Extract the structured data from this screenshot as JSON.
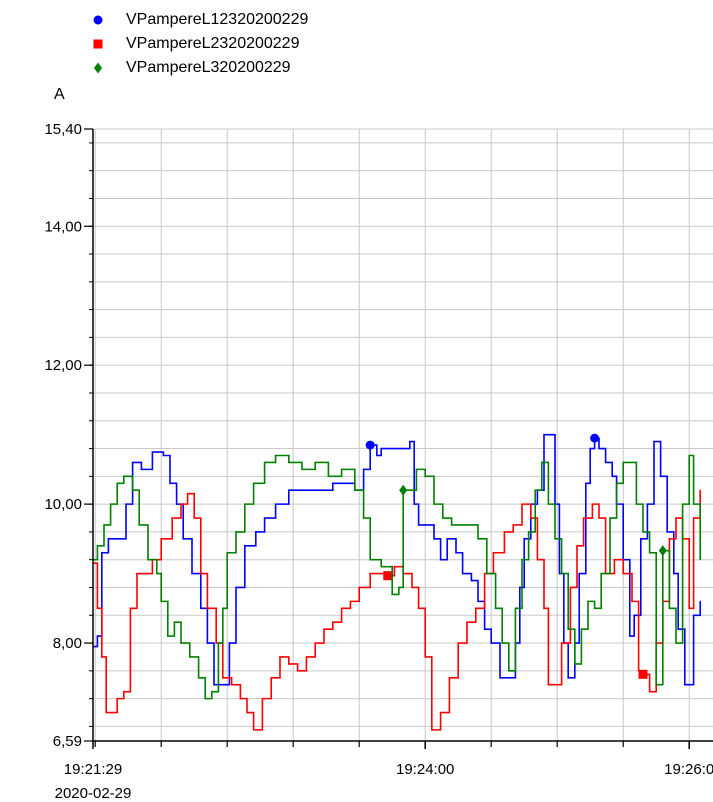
{
  "chart_data": {
    "type": "line",
    "ylabel": "A",
    "ylim": [
      6.59,
      15.4
    ],
    "yticks": [
      "15,40",
      "14,00",
      "12,00",
      "10,00",
      "8,00",
      "6,59"
    ],
    "ytick_values": [
      15.4,
      14.0,
      12.0,
      10.0,
      8.0,
      6.59
    ],
    "xlim": [
      "19:21:29",
      "19:26:05"
    ],
    "xticks": [
      {
        "time": "19:21:29",
        "label": "19:21:29",
        "sublabel": "2020-02-29"
      },
      {
        "time": "19:24:00",
        "label": "19:24:00",
        "sublabel": ""
      },
      {
        "time": "19:26:00",
        "label": "19:26:0",
        "sublabel": ""
      }
    ],
    "grid": true,
    "legend_position": "top-left",
    "series": [
      {
        "name": "VPampereL12320200229",
        "color": "#0000ff",
        "marker": "circle",
        "marker_at": [
          "19:23:35",
          "19:25:17"
        ],
        "points": [
          [
            "19:21:29",
            7.95
          ],
          [
            "19:21:31",
            8.1
          ],
          [
            "19:21:33",
            9.3
          ],
          [
            "19:21:36",
            9.5
          ],
          [
            "19:21:42",
            9.5
          ],
          [
            "19:21:44",
            10.0
          ],
          [
            "19:21:47",
            10.6
          ],
          [
            "19:21:51",
            10.5
          ],
          [
            "19:21:56",
            10.75
          ],
          [
            "19:22:01",
            10.7
          ],
          [
            "19:22:04",
            10.3
          ],
          [
            "19:22:07",
            10.0
          ],
          [
            "19:22:10",
            9.5
          ],
          [
            "19:22:14",
            9.0
          ],
          [
            "19:22:18",
            8.5
          ],
          [
            "19:22:21",
            8.0
          ],
          [
            "19:22:24",
            7.4
          ],
          [
            "19:22:29",
            7.4
          ],
          [
            "19:22:31",
            8.0
          ],
          [
            "19:22:34",
            8.8
          ],
          [
            "19:22:38",
            9.4
          ],
          [
            "19:22:43",
            9.6
          ],
          [
            "19:22:47",
            9.8
          ],
          [
            "19:22:52",
            10.0
          ],
          [
            "19:22:58",
            10.2
          ],
          [
            "19:23:10",
            10.2
          ],
          [
            "19:23:18",
            10.3
          ],
          [
            "19:23:24",
            10.3
          ],
          [
            "19:23:28",
            10.2
          ],
          [
            "19:23:32",
            10.5
          ],
          [
            "19:23:35",
            10.85
          ],
          [
            "19:23:38",
            10.7
          ],
          [
            "19:23:40",
            10.8
          ],
          [
            "19:23:46",
            10.8
          ],
          [
            "19:23:53",
            10.9
          ],
          [
            "19:23:55",
            10.0
          ],
          [
            "19:23:57",
            9.7
          ],
          [
            "19:24:00",
            9.7
          ],
          [
            "19:24:04",
            9.5
          ],
          [
            "19:24:07",
            9.2
          ],
          [
            "19:24:10",
            9.5
          ],
          [
            "19:24:14",
            9.3
          ],
          [
            "19:24:17",
            9.0
          ],
          [
            "19:24:21",
            8.9
          ],
          [
            "19:24:24",
            8.6
          ],
          [
            "19:24:27",
            8.2
          ],
          [
            "19:24:30",
            8.0
          ],
          [
            "19:24:34",
            7.5
          ],
          [
            "19:24:38",
            7.5
          ],
          [
            "19:24:41",
            8.0
          ],
          [
            "19:24:43",
            8.8
          ],
          [
            "19:24:45",
            9.5
          ],
          [
            "19:24:48",
            10.0
          ],
          [
            "19:24:51",
            10.2
          ],
          [
            "19:24:54",
            11.0
          ],
          [
            "19:24:57",
            11.0
          ],
          [
            "19:24:59",
            10.0
          ],
          [
            "19:25:01",
            9.0
          ],
          [
            "19:25:03",
            8.0
          ],
          [
            "19:25:05",
            7.5
          ],
          [
            "19:25:08",
            8.0
          ],
          [
            "19:25:10",
            9.0
          ],
          [
            "19:25:13",
            10.3
          ],
          [
            "19:25:15",
            10.8
          ],
          [
            "19:25:17",
            10.95
          ],
          [
            "19:25:19",
            10.8
          ],
          [
            "19:25:22",
            10.6
          ],
          [
            "19:25:25",
            10.4
          ],
          [
            "19:25:27",
            10.0
          ],
          [
            "19:25:30",
            9.2
          ],
          [
            "19:25:33",
            8.1
          ],
          [
            "19:25:35",
            8.4
          ],
          [
            "19:25:38",
            9.5
          ],
          [
            "19:25:41",
            10.0
          ],
          [
            "19:25:44",
            10.9
          ],
          [
            "19:25:47",
            10.4
          ],
          [
            "19:25:50",
            9.6
          ],
          [
            "19:25:53",
            9.0
          ],
          [
            "19:25:55",
            8.2
          ],
          [
            "19:25:58",
            7.4
          ],
          [
            "19:26:00",
            7.4
          ],
          [
            "19:26:02",
            8.4
          ],
          [
            "19:26:05",
            8.6
          ]
        ]
      },
      {
        "name": "VPampereL2320200229",
        "color": "#ff0000",
        "marker": "square",
        "marker_at": [
          "19:23:43",
          "19:25:39"
        ],
        "points": [
          [
            "19:21:29",
            9.15
          ],
          [
            "19:21:31",
            8.5
          ],
          [
            "19:21:33",
            7.8
          ],
          [
            "19:21:35",
            7.0
          ],
          [
            "19:21:38",
            7.0
          ],
          [
            "19:21:40",
            7.2
          ],
          [
            "19:21:43",
            7.3
          ],
          [
            "19:21:46",
            8.5
          ],
          [
            "19:21:49",
            9.0
          ],
          [
            "19:21:53",
            9.0
          ],
          [
            "19:21:56",
            9.2
          ],
          [
            "19:22:00",
            9.5
          ],
          [
            "19:22:05",
            9.8
          ],
          [
            "19:22:09",
            10.0
          ],
          [
            "19:22:12",
            10.15
          ],
          [
            "19:22:15",
            9.8
          ],
          [
            "19:22:18",
            9.0
          ],
          [
            "19:22:21",
            8.5
          ],
          [
            "19:22:25",
            8.0
          ],
          [
            "19:22:28",
            7.5
          ],
          [
            "19:22:32",
            7.4
          ],
          [
            "19:22:36",
            7.2
          ],
          [
            "19:22:39",
            7.0
          ],
          [
            "19:22:42",
            6.75
          ],
          [
            "19:22:46",
            7.2
          ],
          [
            "19:22:50",
            7.5
          ],
          [
            "19:22:54",
            7.8
          ],
          [
            "19:22:58",
            7.7
          ],
          [
            "19:23:02",
            7.6
          ],
          [
            "19:23:06",
            7.8
          ],
          [
            "19:23:10",
            8.0
          ],
          [
            "19:23:14",
            8.2
          ],
          [
            "19:23:18",
            8.3
          ],
          [
            "19:23:22",
            8.5
          ],
          [
            "19:23:26",
            8.6
          ],
          [
            "19:23:30",
            8.8
          ],
          [
            "19:23:35",
            9.0
          ],
          [
            "19:23:40",
            9.0
          ],
          [
            "19:23:43",
            8.97
          ],
          [
            "19:23:46",
            9.1
          ],
          [
            "19:23:50",
            9.0
          ],
          [
            "19:23:54",
            8.8
          ],
          [
            "19:23:57",
            8.5
          ],
          [
            "19:24:00",
            7.8
          ],
          [
            "19:24:03",
            6.75
          ],
          [
            "19:24:07",
            7.0
          ],
          [
            "19:24:11",
            7.5
          ],
          [
            "19:24:15",
            8.0
          ],
          [
            "19:24:19",
            8.3
          ],
          [
            "19:24:23",
            8.5
          ],
          [
            "19:24:27",
            9.0
          ],
          [
            "19:24:31",
            9.3
          ],
          [
            "19:24:36",
            9.6
          ],
          [
            "19:24:40",
            9.7
          ],
          [
            "19:24:44",
            10.0
          ],
          [
            "19:24:48",
            9.8
          ],
          [
            "19:24:51",
            9.2
          ],
          [
            "19:24:54",
            8.5
          ],
          [
            "19:24:56",
            7.4
          ],
          [
            "19:24:59",
            7.4
          ],
          [
            "19:25:02",
            8.0
          ],
          [
            "19:25:06",
            8.8
          ],
          [
            "19:25:09",
            9.4
          ],
          [
            "19:25:12",
            9.8
          ],
          [
            "19:25:16",
            10.0
          ],
          [
            "19:25:19",
            9.8
          ],
          [
            "19:25:22",
            9.0
          ],
          [
            "19:25:26",
            9.2
          ],
          [
            "19:25:30",
            9.0
          ],
          [
            "19:25:34",
            8.6
          ],
          [
            "19:25:37",
            7.6
          ],
          [
            "19:25:39",
            7.55
          ],
          [
            "19:25:42",
            7.3
          ],
          [
            "19:25:45",
            8.0
          ],
          [
            "19:25:48",
            8.6
          ],
          [
            "19:25:51",
            9.5
          ],
          [
            "19:25:54",
            9.8
          ],
          [
            "19:25:57",
            9.5
          ],
          [
            "19:26:00",
            8.5
          ],
          [
            "19:26:02",
            9.8
          ],
          [
            "19:26:05",
            10.2
          ]
        ]
      },
      {
        "name": "VPampereL320200229",
        "color": "#008000",
        "marker": "diamond",
        "marker_at": [
          "19:23:50",
          "19:25:48"
        ],
        "points": [
          [
            "19:21:29",
            9.2
          ],
          [
            "19:21:31",
            9.4
          ],
          [
            "19:21:34",
            9.7
          ],
          [
            "19:21:37",
            10.0
          ],
          [
            "19:21:40",
            10.3
          ],
          [
            "19:21:43",
            10.4
          ],
          [
            "19:21:47",
            10.2
          ],
          [
            "19:21:50",
            9.7
          ],
          [
            "19:21:54",
            9.2
          ],
          [
            "19:21:58",
            9.0
          ],
          [
            "19:22:00",
            8.6
          ],
          [
            "19:22:03",
            8.1
          ],
          [
            "19:22:06",
            8.3
          ],
          [
            "19:22:09",
            8.0
          ],
          [
            "19:22:13",
            7.8
          ],
          [
            "19:22:17",
            7.5
          ],
          [
            "19:22:20",
            7.2
          ],
          [
            "19:22:23",
            7.3
          ],
          [
            "19:22:26",
            8.0
          ],
          [
            "19:22:28",
            8.5
          ],
          [
            "19:22:30",
            9.3
          ],
          [
            "19:22:34",
            9.6
          ],
          [
            "19:22:38",
            10.0
          ],
          [
            "19:22:42",
            10.3
          ],
          [
            "19:22:47",
            10.6
          ],
          [
            "19:22:52",
            10.7
          ],
          [
            "19:22:58",
            10.6
          ],
          [
            "19:23:04",
            10.5
          ],
          [
            "19:23:10",
            10.6
          ],
          [
            "19:23:16",
            10.4
          ],
          [
            "19:23:22",
            10.5
          ],
          [
            "19:23:28",
            10.2
          ],
          [
            "19:23:32",
            9.8
          ],
          [
            "19:23:35",
            9.2
          ],
          [
            "19:23:40",
            9.1
          ],
          [
            "19:23:45",
            8.7
          ],
          [
            "19:23:48",
            8.8
          ],
          [
            "19:23:50",
            10.2
          ],
          [
            "19:23:53",
            10.2
          ],
          [
            "19:23:56",
            10.5
          ],
          [
            "19:24:00",
            10.4
          ],
          [
            "19:24:04",
            10.0
          ],
          [
            "19:24:08",
            9.8
          ],
          [
            "19:24:12",
            9.7
          ],
          [
            "19:24:18",
            9.7
          ],
          [
            "19:24:24",
            9.5
          ],
          [
            "19:24:28",
            9.0
          ],
          [
            "19:24:32",
            8.5
          ],
          [
            "19:24:35",
            8.0
          ],
          [
            "19:24:38",
            7.6
          ],
          [
            "19:24:41",
            8.5
          ],
          [
            "19:24:44",
            9.2
          ],
          [
            "19:24:47",
            9.6
          ],
          [
            "19:24:50",
            10.2
          ],
          [
            "19:24:53",
            10.6
          ],
          [
            "19:24:56",
            10.0
          ],
          [
            "19:24:59",
            9.5
          ],
          [
            "19:25:02",
            9.0
          ],
          [
            "19:25:05",
            8.2
          ],
          [
            "19:25:08",
            7.7
          ],
          [
            "19:25:11",
            8.2
          ],
          [
            "19:25:14",
            8.6
          ],
          [
            "19:25:17",
            8.5
          ],
          [
            "19:25:20",
            9.0
          ],
          [
            "19:25:24",
            9.8
          ],
          [
            "19:25:27",
            10.3
          ],
          [
            "19:25:30",
            10.6
          ],
          [
            "19:25:33",
            10.6
          ],
          [
            "19:25:36",
            10.0
          ],
          [
            "19:25:39",
            9.6
          ],
          [
            "19:25:42",
            9.3
          ],
          [
            "19:25:45",
            7.4
          ],
          [
            "19:25:48",
            9.33
          ],
          [
            "19:25:51",
            8.5
          ],
          [
            "19:25:54",
            8.0
          ],
          [
            "19:25:57",
            10.0
          ],
          [
            "19:26:00",
            10.7
          ],
          [
            "19:26:02",
            10.0
          ],
          [
            "19:26:05",
            9.2
          ]
        ]
      }
    ]
  }
}
